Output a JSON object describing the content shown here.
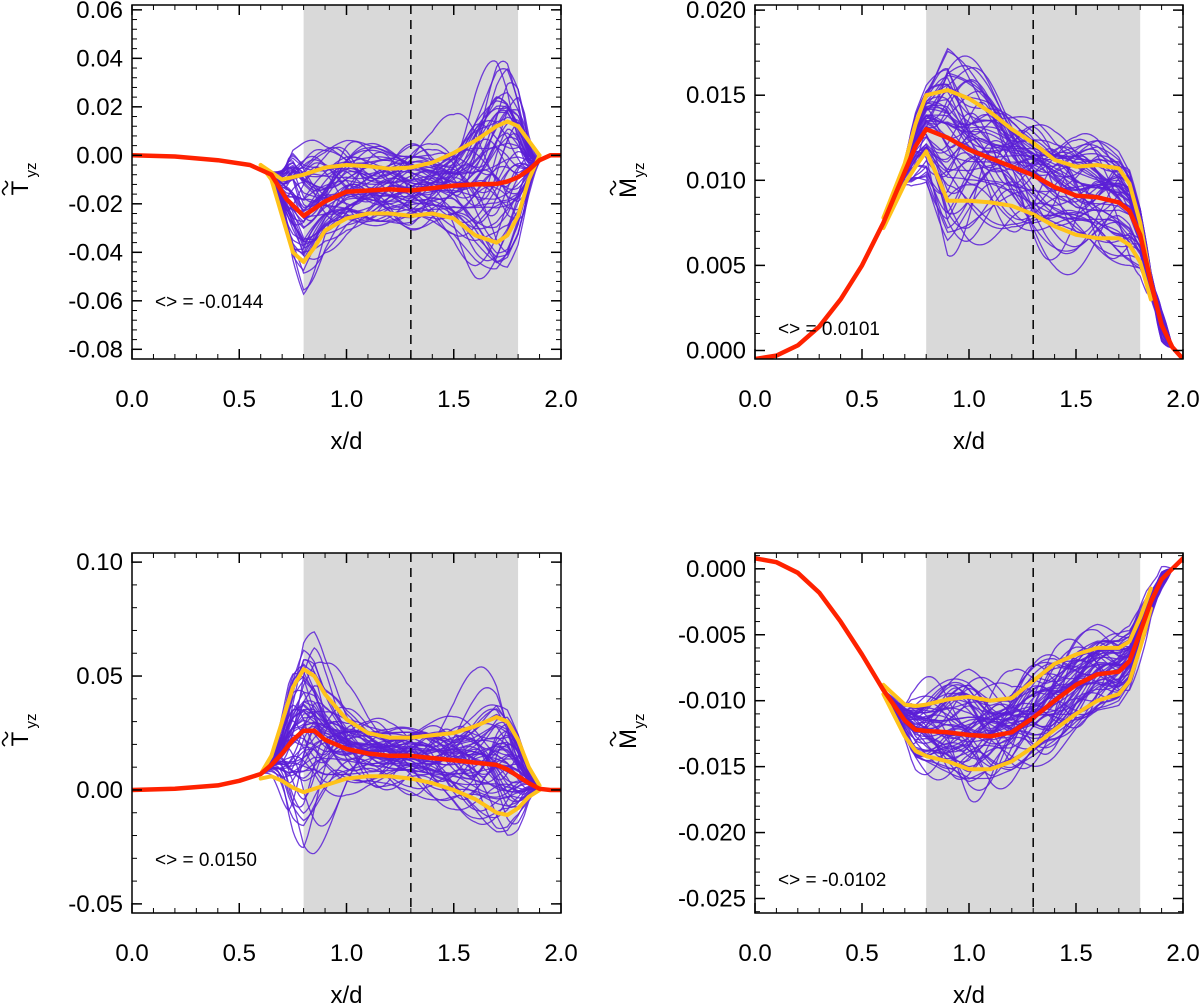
{
  "colors": {
    "ensemble": "#5a1fd6",
    "mean": "#ff2200",
    "band": "#ffc21a",
    "shade": "#d9d9d9",
    "axis": "#000000"
  },
  "chart_data": [
    {
      "type": "line",
      "panel": "top-left",
      "ylabel_main": "T",
      "ylabel_sub": "yz",
      "xlabel": "x/d",
      "xlim": [
        0.0,
        2.0
      ],
      "ylim": [
        -0.084,
        0.062
      ],
      "xticks": [
        "0.0",
        "0.5",
        "1.0",
        "1.5",
        "2.0"
      ],
      "yticks": [
        "0.06",
        "0.04",
        "0.02",
        "0.00",
        "-0.02",
        "-0.04",
        "-0.06",
        "-0.08"
      ],
      "shaded_x": [
        0.8,
        1.8
      ],
      "vline_x": 1.3,
      "annotation": "<> = -0.0144",
      "series": [
        {
          "role": "mean",
          "x": [
            0.0,
            0.2,
            0.4,
            0.55,
            0.65,
            0.72,
            0.8,
            0.9,
            1.0,
            1.1,
            1.2,
            1.3,
            1.4,
            1.5,
            1.6,
            1.7,
            1.75,
            1.8,
            1.85,
            1.9,
            1.95,
            2.0
          ],
          "y": [
            0.0,
            -0.0005,
            -0.002,
            -0.004,
            -0.008,
            -0.018,
            -0.025,
            -0.019,
            -0.015,
            -0.0145,
            -0.014,
            -0.0145,
            -0.0135,
            -0.0125,
            -0.012,
            -0.0118,
            -0.0108,
            -0.009,
            -0.006,
            -0.002,
            0.0,
            0.0
          ]
        },
        {
          "role": "upper",
          "x": [
            0.6,
            0.65,
            0.7,
            0.8,
            0.9,
            1.0,
            1.1,
            1.2,
            1.3,
            1.4,
            1.5,
            1.6,
            1.7,
            1.75,
            1.8,
            1.85,
            1.9
          ],
          "y": [
            -0.004,
            -0.007,
            -0.01,
            -0.008,
            -0.005,
            -0.004,
            -0.0045,
            -0.0055,
            -0.005,
            -0.003,
            0.001,
            0.006,
            0.012,
            0.014,
            0.012,
            0.006,
            0.0
          ]
        },
        {
          "role": "lower",
          "x": [
            0.6,
            0.65,
            0.7,
            0.75,
            0.8,
            0.85,
            0.9,
            1.0,
            1.1,
            1.2,
            1.3,
            1.4,
            1.5,
            1.6,
            1.7,
            1.75,
            1.8,
            1.85,
            1.9
          ],
          "y": [
            -0.004,
            -0.01,
            -0.025,
            -0.04,
            -0.044,
            -0.038,
            -0.031,
            -0.026,
            -0.024,
            -0.024,
            -0.025,
            -0.024,
            -0.026,
            -0.033,
            -0.036,
            -0.033,
            -0.025,
            -0.01,
            0.0
          ]
        }
      ]
    },
    {
      "type": "line",
      "panel": "top-right",
      "ylabel_main": "M",
      "ylabel_sub": "yz",
      "xlabel": "x/d",
      "xlim": [
        0.0,
        2.0
      ],
      "ylim": [
        -0.0005,
        0.0203
      ],
      "xticks": [
        "0.0",
        "0.5",
        "1.0",
        "1.5",
        "2.0"
      ],
      "yticks": [
        "0.020",
        "0.015",
        "0.010",
        "0.005",
        "0.000"
      ],
      "shaded_x": [
        0.8,
        1.8
      ],
      "vline_x": 1.3,
      "annotation": "<> = 0.0101",
      "series": [
        {
          "role": "mean",
          "x": [
            0.0,
            0.1,
            0.2,
            0.3,
            0.4,
            0.5,
            0.6,
            0.7,
            0.75,
            0.8,
            0.9,
            1.0,
            1.1,
            1.2,
            1.3,
            1.4,
            1.5,
            1.6,
            1.7,
            1.75,
            1.8,
            1.85,
            1.9,
            1.95,
            2.0
          ],
          "y": [
            -0.0005,
            -0.0003,
            0.0003,
            0.0014,
            0.003,
            0.005,
            0.0075,
            0.0105,
            0.012,
            0.013,
            0.0125,
            0.0118,
            0.0113,
            0.0108,
            0.0103,
            0.0096,
            0.0091,
            0.009,
            0.0087,
            0.0082,
            0.0068,
            0.004,
            0.0015,
            0.0002,
            -0.0005
          ]
        },
        {
          "role": "upper",
          "x": [
            0.6,
            0.7,
            0.75,
            0.8,
            0.9,
            1.0,
            1.1,
            1.2,
            1.3,
            1.4,
            1.5,
            1.6,
            1.7,
            1.75,
            1.8,
            1.85
          ],
          "y": [
            0.0078,
            0.011,
            0.0133,
            0.015,
            0.0153,
            0.0148,
            0.014,
            0.013,
            0.0122,
            0.0112,
            0.0108,
            0.0109,
            0.0107,
            0.0098,
            0.0075,
            0.004
          ]
        },
        {
          "role": "lower",
          "x": [
            0.6,
            0.7,
            0.75,
            0.8,
            0.85,
            0.9,
            1.0,
            1.1,
            1.2,
            1.3,
            1.4,
            1.5,
            1.6,
            1.7,
            1.75,
            1.8,
            1.85
          ],
          "y": [
            0.0072,
            0.0098,
            0.0108,
            0.0117,
            0.0103,
            0.0088,
            0.0088,
            0.0087,
            0.0085,
            0.008,
            0.0073,
            0.0068,
            0.0066,
            0.0066,
            0.0062,
            0.0052,
            0.003
          ]
        }
      ]
    },
    {
      "type": "line",
      "panel": "bottom-left",
      "ylabel_main": "T",
      "ylabel_sub": "yz",
      "xlabel": "x/d",
      "xlim": [
        0.0,
        2.0
      ],
      "ylim": [
        -0.054,
        0.104
      ],
      "xticks": [
        "0.0",
        "0.5",
        "1.0",
        "1.5",
        "2.0"
      ],
      "yticks": [
        "0.10",
        "0.05",
        "0.00",
        "-0.05"
      ],
      "shaded_x": [
        0.8,
        1.8
      ],
      "vline_x": 1.3,
      "annotation": "<> = 0.0150",
      "series": [
        {
          "role": "mean",
          "x": [
            0.0,
            0.2,
            0.4,
            0.5,
            0.6,
            0.65,
            0.7,
            0.75,
            0.8,
            0.85,
            0.9,
            1.0,
            1.1,
            1.2,
            1.3,
            1.4,
            1.5,
            1.6,
            1.7,
            1.75,
            1.8,
            1.85,
            1.9,
            1.95,
            2.0
          ],
          "y": [
            0.0,
            0.0005,
            0.002,
            0.004,
            0.007,
            0.011,
            0.016,
            0.022,
            0.026,
            0.026,
            0.022,
            0.018,
            0.016,
            0.015,
            0.015,
            0.014,
            0.013,
            0.012,
            0.011,
            0.009,
            0.006,
            0.003,
            0.0005,
            0.0,
            0.0
          ]
        },
        {
          "role": "upper",
          "x": [
            0.6,
            0.65,
            0.7,
            0.75,
            0.8,
            0.85,
            0.9,
            1.0,
            1.1,
            1.2,
            1.3,
            1.4,
            1.5,
            1.6,
            1.7,
            1.75,
            1.8,
            1.85,
            1.9
          ],
          "y": [
            0.007,
            0.015,
            0.03,
            0.045,
            0.053,
            0.05,
            0.042,
            0.031,
            0.025,
            0.023,
            0.023,
            0.024,
            0.025,
            0.028,
            0.032,
            0.03,
            0.022,
            0.01,
            0.002
          ]
        },
        {
          "role": "lower",
          "x": [
            0.6,
            0.65,
            0.7,
            0.75,
            0.8,
            0.9,
            1.0,
            1.1,
            1.2,
            1.3,
            1.4,
            1.5,
            1.6,
            1.7,
            1.75,
            1.8,
            1.85,
            1.9
          ],
          "y": [
            0.005,
            0.006,
            0.004,
            0.001,
            -0.001,
            0.002,
            0.005,
            0.006,
            0.006,
            0.005,
            0.003,
            0.0,
            -0.004,
            -0.01,
            -0.011,
            -0.008,
            -0.003,
            0.0
          ]
        }
      ]
    },
    {
      "type": "line",
      "panel": "bottom-right",
      "ylabel_main": "M",
      "ylabel_sub": "yz",
      "xlabel": "x/d",
      "xlim": [
        0.0,
        2.0
      ],
      "ylim": [
        -0.0261,
        0.0012
      ],
      "xticks": [
        "0.0",
        "0.5",
        "1.0",
        "1.5",
        "2.0"
      ],
      "yticks": [
        "0.000",
        "-0.005",
        "-0.010",
        "-0.015",
        "-0.020",
        "-0.025"
      ],
      "shaded_x": [
        0.8,
        1.8
      ],
      "vline_x": 1.3,
      "annotation": "<> = -0.0102",
      "series": [
        {
          "role": "mean",
          "x": [
            0.0,
            0.1,
            0.2,
            0.3,
            0.4,
            0.5,
            0.6,
            0.7,
            0.75,
            0.8,
            0.9,
            1.0,
            1.1,
            1.2,
            1.3,
            1.4,
            1.5,
            1.6,
            1.7,
            1.75,
            1.8,
            1.85,
            1.9,
            1.95,
            2.0
          ],
          "y": [
            0.0008,
            0.0005,
            -0.0003,
            -0.0018,
            -0.004,
            -0.0065,
            -0.0092,
            -0.0115,
            -0.0122,
            -0.0123,
            -0.0124,
            -0.0126,
            -0.0127,
            -0.0124,
            -0.0113,
            -0.01,
            -0.0088,
            -0.008,
            -0.0078,
            -0.007,
            -0.0048,
            -0.0025,
            -0.0008,
            0.0,
            0.0008
          ]
        },
        {
          "role": "upper",
          "x": [
            0.6,
            0.7,
            0.75,
            0.8,
            0.9,
            1.0,
            1.1,
            1.2,
            1.3,
            1.4,
            1.5,
            1.6,
            1.7,
            1.75,
            1.8,
            1.85
          ],
          "y": [
            -0.0088,
            -0.0103,
            -0.0104,
            -0.0103,
            -0.0099,
            -0.0097,
            -0.01,
            -0.0098,
            -0.0085,
            -0.0072,
            -0.0065,
            -0.006,
            -0.006,
            -0.0055,
            -0.0037,
            -0.0015
          ]
        },
        {
          "role": "lower",
          "x": [
            0.6,
            0.7,
            0.75,
            0.8,
            0.9,
            1.0,
            1.1,
            1.2,
            1.3,
            1.4,
            1.5,
            1.6,
            1.7,
            1.75,
            1.8,
            1.85
          ],
          "y": [
            -0.0095,
            -0.0127,
            -0.0138,
            -0.0142,
            -0.0146,
            -0.0152,
            -0.0152,
            -0.0146,
            -0.0135,
            -0.0122,
            -0.011,
            -0.01,
            -0.0095,
            -0.0085,
            -0.006,
            -0.003
          ]
        }
      ]
    }
  ]
}
